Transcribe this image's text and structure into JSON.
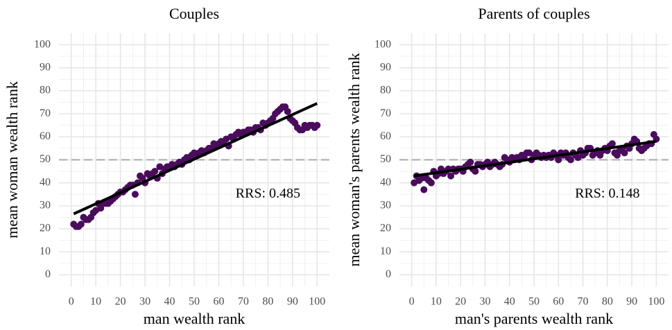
{
  "chart_data": [
    {
      "type": "scatter",
      "title": "Couples",
      "x_label": "man wealth rank",
      "y_label": "mean woman wealth rank",
      "x": [
        1,
        2,
        3,
        4,
        5,
        6,
        7,
        8,
        9,
        10,
        11,
        12,
        13,
        14,
        15,
        16,
        17,
        18,
        19,
        20,
        21,
        22,
        23,
        24,
        25,
        26,
        27,
        28,
        29,
        30,
        31,
        32,
        33,
        34,
        35,
        36,
        37,
        38,
        39,
        40,
        41,
        42,
        43,
        44,
        45,
        46,
        47,
        48,
        49,
        50,
        51,
        52,
        53,
        54,
        55,
        56,
        57,
        58,
        59,
        60,
        61,
        62,
        63,
        64,
        65,
        66,
        67,
        68,
        69,
        70,
        71,
        72,
        73,
        74,
        75,
        76,
        77,
        78,
        79,
        80,
        81,
        82,
        83,
        84,
        85,
        86,
        87,
        88,
        89,
        90,
        91,
        92,
        93,
        94,
        95,
        96,
        97,
        98,
        99,
        100
      ],
      "values": [
        22,
        21,
        21,
        22,
        25,
        24,
        24,
        25,
        27,
        28,
        31,
        29,
        31,
        31,
        31,
        32,
        33,
        34,
        35,
        36,
        36,
        37,
        38,
        39,
        39,
        35,
        40,
        43,
        42,
        40,
        44,
        43,
        44,
        45,
        42,
        47,
        44,
        46,
        47,
        47,
        48,
        47,
        48,
        49,
        48,
        50,
        51,
        50,
        52,
        53,
        52,
        53,
        54,
        53,
        54,
        55,
        55,
        57,
        56,
        57,
        58,
        57,
        59,
        56,
        60,
        59,
        61,
        62,
        61,
        62,
        62,
        63,
        63,
        62,
        64,
        64,
        63,
        66,
        65,
        66,
        67,
        68,
        70,
        71,
        72,
        73,
        73,
        71,
        68,
        67,
        66,
        64,
        63,
        63,
        65,
        64,
        65,
        65,
        64,
        65
      ],
      "color": "#4a0c5c",
      "fit": {
        "x": [
          1,
          100
        ],
        "y": [
          26.5,
          74.5
        ]
      },
      "hline": 50,
      "annotation": "RRS: 0.485",
      "xlim": [
        -5,
        105
      ],
      "ylim": [
        -5,
        105
      ],
      "xticks": [
        0,
        10,
        20,
        30,
        40,
        50,
        60,
        70,
        80,
        90,
        100
      ],
      "yticks": [
        0,
        10,
        20,
        30,
        40,
        50,
        60,
        70,
        80,
        90,
        100
      ],
      "grid": true
    },
    {
      "type": "scatter",
      "title": "Parents of couples",
      "x_label": "man's parents wealth rank",
      "y_label": "mean woman's parents wealth rank",
      "x": [
        1,
        2,
        3,
        4,
        5,
        6,
        7,
        8,
        9,
        10,
        11,
        12,
        13,
        14,
        15,
        16,
        17,
        18,
        19,
        20,
        21,
        22,
        23,
        24,
        25,
        26,
        27,
        28,
        29,
        30,
        31,
        32,
        33,
        34,
        35,
        36,
        37,
        38,
        39,
        40,
        41,
        42,
        43,
        44,
        45,
        46,
        47,
        48,
        49,
        50,
        51,
        52,
        53,
        54,
        55,
        56,
        57,
        58,
        59,
        60,
        61,
        62,
        63,
        64,
        65,
        66,
        67,
        68,
        69,
        70,
        71,
        72,
        73,
        74,
        75,
        76,
        77,
        78,
        79,
        80,
        81,
        82,
        83,
        84,
        85,
        86,
        87,
        88,
        89,
        90,
        91,
        92,
        93,
        94,
        95,
        96,
        97,
        98,
        99,
        100
      ],
      "values": [
        40,
        43,
        41,
        42,
        37,
        42,
        41,
        40,
        45,
        43,
        44,
        46,
        44,
        45,
        46,
        43,
        46,
        45,
        46,
        46,
        45,
        47,
        48,
        49,
        46,
        45,
        48,
        48,
        47,
        48,
        49,
        47,
        48,
        49,
        48,
        47,
        48,
        51,
        50,
        49,
        51,
        50,
        51,
        50,
        52,
        51,
        53,
        53,
        50,
        52,
        53,
        52,
        51,
        52,
        51,
        52,
        51,
        53,
        52,
        50,
        53,
        52,
        53,
        51,
        50,
        53,
        52,
        51,
        54,
        52,
        53,
        55,
        55,
        52,
        53,
        54,
        52,
        54,
        55,
        54,
        56,
        57,
        53,
        52,
        54,
        55,
        53,
        56,
        55,
        57,
        59,
        58,
        55,
        54,
        55,
        56,
        57,
        57,
        61,
        59
      ],
      "color": "#4a0c5c",
      "fit": {
        "x": [
          1,
          100
        ],
        "y": [
          43,
          58
        ]
      },
      "hline": 50,
      "annotation": "RRS: 0.148",
      "xlim": [
        -5,
        105
      ],
      "ylim": [
        -5,
        105
      ],
      "xticks": [
        0,
        10,
        20,
        30,
        40,
        50,
        60,
        70,
        80,
        90,
        100
      ],
      "yticks": [
        0,
        10,
        20,
        30,
        40,
        50,
        60,
        70,
        80,
        90,
        100
      ],
      "grid": true
    }
  ]
}
